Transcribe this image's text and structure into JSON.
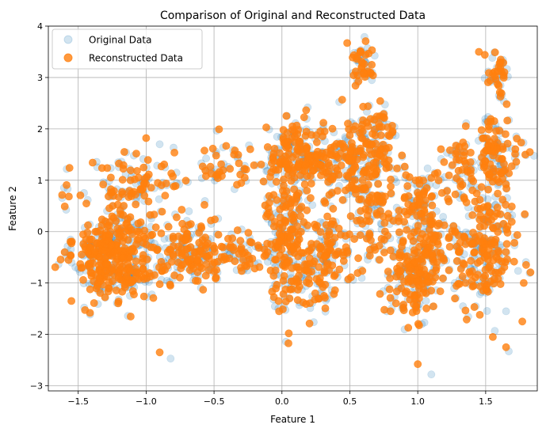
{
  "chart_data": {
    "type": "scatter",
    "title": "Comparison of Original and Reconstructed Data",
    "xlabel": "Feature 1",
    "ylabel": "Feature 2",
    "xlim": [
      -1.72,
      1.88
    ],
    "ylim": [
      -3.1,
      4.0
    ],
    "xticks": [
      -1.5,
      -1.0,
      -0.5,
      0.0,
      0.5,
      1.0,
      1.5
    ],
    "xtick_labels": [
      "−1.5",
      "−1.0",
      "−0.5",
      "0.0",
      "0.5",
      "1.0",
      "1.5"
    ],
    "yticks": [
      -3,
      -2,
      -1,
      0,
      1,
      2,
      3,
      4
    ],
    "ytick_labels": [
      "−3",
      "−2",
      "−1",
      "0",
      "1",
      "2",
      "3",
      "4"
    ],
    "grid": true,
    "legend_position": "top-left",
    "series": [
      {
        "name": "Original Data",
        "color": "#1f77b4",
        "alpha": 0.2,
        "clusters": [
          {
            "cx": -1.25,
            "cy": -0.45,
            "sx": 0.14,
            "sy": 0.45,
            "n": 260
          },
          {
            "cx": -1.05,
            "cy": 0.95,
            "sx": 0.22,
            "sy": 0.35,
            "n": 70
          },
          {
            "cx": -0.7,
            "cy": -0.45,
            "sx": 0.18,
            "sy": 0.3,
            "n": 120
          },
          {
            "cx": -0.3,
            "cy": -0.3,
            "sx": 0.12,
            "sy": 0.25,
            "n": 40
          },
          {
            "cx": -0.4,
            "cy": 1.3,
            "sx": 0.12,
            "sy": 0.22,
            "n": 30
          },
          {
            "cx": 0.05,
            "cy": -0.5,
            "sx": 0.1,
            "sy": 0.5,
            "n": 110
          },
          {
            "cx": 0.05,
            "cy": 0.9,
            "sx": 0.1,
            "sy": 0.6,
            "n": 90
          },
          {
            "cx": 0.2,
            "cy": 1.55,
            "sx": 0.12,
            "sy": 0.25,
            "n": 100
          },
          {
            "cx": 0.33,
            "cy": -0.5,
            "sx": 0.1,
            "sy": 0.45,
            "n": 80
          },
          {
            "cx": 0.55,
            "cy": 1.3,
            "sx": 0.1,
            "sy": 0.5,
            "n": 110
          },
          {
            "cx": 0.58,
            "cy": 3.2,
            "sx": 0.04,
            "sy": 0.25,
            "n": 30
          },
          {
            "cx": 0.7,
            "cy": 0.2,
            "sx": 0.08,
            "sy": 0.5,
            "n": 60
          },
          {
            "cx": 0.72,
            "cy": 1.7,
            "sx": 0.06,
            "sy": 0.45,
            "n": 40
          },
          {
            "cx": 0.97,
            "cy": -0.7,
            "sx": 0.08,
            "sy": 0.5,
            "n": 120
          },
          {
            "cx": 1.02,
            "cy": 0.6,
            "sx": 0.08,
            "sy": 0.4,
            "n": 50
          },
          {
            "cx": 1.15,
            "cy": -0.4,
            "sx": 0.08,
            "sy": 0.35,
            "n": 50
          },
          {
            "cx": 1.5,
            "cy": -0.4,
            "sx": 0.12,
            "sy": 0.5,
            "n": 130
          },
          {
            "cx": 1.55,
            "cy": 1.3,
            "sx": 0.1,
            "sy": 0.45,
            "n": 100
          },
          {
            "cx": 1.6,
            "cy": 3.1,
            "sx": 0.04,
            "sy": 0.25,
            "n": 25
          },
          {
            "cx": 1.3,
            "cy": 1.2,
            "sx": 0.08,
            "sy": 0.3,
            "n": 30
          }
        ],
        "outliers": [
          [
            -0.82,
            -2.47
          ],
          [
            1.1,
            -2.78
          ],
          [
            1.67,
            -2.33
          ],
          [
            0.63,
            3.57
          ],
          [
            1.65,
            -1.55
          ],
          [
            -0.9,
            1.7
          ]
        ]
      },
      {
        "name": "Reconstructed Data",
        "color": "#ff7f0e",
        "alpha": 0.8,
        "clusters": [
          {
            "cx": -1.25,
            "cy": -0.45,
            "sx": 0.14,
            "sy": 0.45,
            "n": 260
          },
          {
            "cx": -1.05,
            "cy": 0.95,
            "sx": 0.22,
            "sy": 0.35,
            "n": 70
          },
          {
            "cx": -0.7,
            "cy": -0.45,
            "sx": 0.18,
            "sy": 0.3,
            "n": 120
          },
          {
            "cx": -0.3,
            "cy": -0.3,
            "sx": 0.12,
            "sy": 0.25,
            "n": 40
          },
          {
            "cx": -0.4,
            "cy": 1.3,
            "sx": 0.12,
            "sy": 0.22,
            "n": 30
          },
          {
            "cx": 0.05,
            "cy": -0.5,
            "sx": 0.1,
            "sy": 0.5,
            "n": 110
          },
          {
            "cx": 0.05,
            "cy": 0.9,
            "sx": 0.1,
            "sy": 0.6,
            "n": 90
          },
          {
            "cx": 0.2,
            "cy": 1.55,
            "sx": 0.12,
            "sy": 0.25,
            "n": 100
          },
          {
            "cx": 0.33,
            "cy": -0.5,
            "sx": 0.1,
            "sy": 0.45,
            "n": 80
          },
          {
            "cx": 0.55,
            "cy": 1.3,
            "sx": 0.1,
            "sy": 0.5,
            "n": 110
          },
          {
            "cx": 0.58,
            "cy": 3.2,
            "sx": 0.04,
            "sy": 0.25,
            "n": 30
          },
          {
            "cx": 0.7,
            "cy": 0.2,
            "sx": 0.08,
            "sy": 0.5,
            "n": 60
          },
          {
            "cx": 0.72,
            "cy": 1.7,
            "sx": 0.06,
            "sy": 0.45,
            "n": 40
          },
          {
            "cx": 0.97,
            "cy": -0.7,
            "sx": 0.08,
            "sy": 0.5,
            "n": 120
          },
          {
            "cx": 1.02,
            "cy": 0.6,
            "sx": 0.08,
            "sy": 0.4,
            "n": 50
          },
          {
            "cx": 1.15,
            "cy": -0.4,
            "sx": 0.08,
            "sy": 0.35,
            "n": 50
          },
          {
            "cx": 1.5,
            "cy": -0.4,
            "sx": 0.12,
            "sy": 0.5,
            "n": 130
          },
          {
            "cx": 1.55,
            "cy": 1.3,
            "sx": 0.1,
            "sy": 0.45,
            "n": 100
          },
          {
            "cx": 1.6,
            "cy": 3.1,
            "sx": 0.04,
            "sy": 0.25,
            "n": 25
          },
          {
            "cx": 1.3,
            "cy": 1.2,
            "sx": 0.08,
            "sy": 0.3,
            "n": 30
          }
        ],
        "outliers": [
          [
            -0.9,
            -2.35
          ],
          [
            1.0,
            -2.58
          ],
          [
            1.65,
            -2.25
          ],
          [
            0.48,
            3.67
          ],
          [
            0.05,
            -1.98
          ],
          [
            1.45,
            3.5
          ],
          [
            1.78,
            -1.0
          ],
          [
            1.77,
            -1.75
          ],
          [
            -1.55,
            -1.35
          ],
          [
            -1.0,
            1.82
          ]
        ]
      }
    ]
  }
}
